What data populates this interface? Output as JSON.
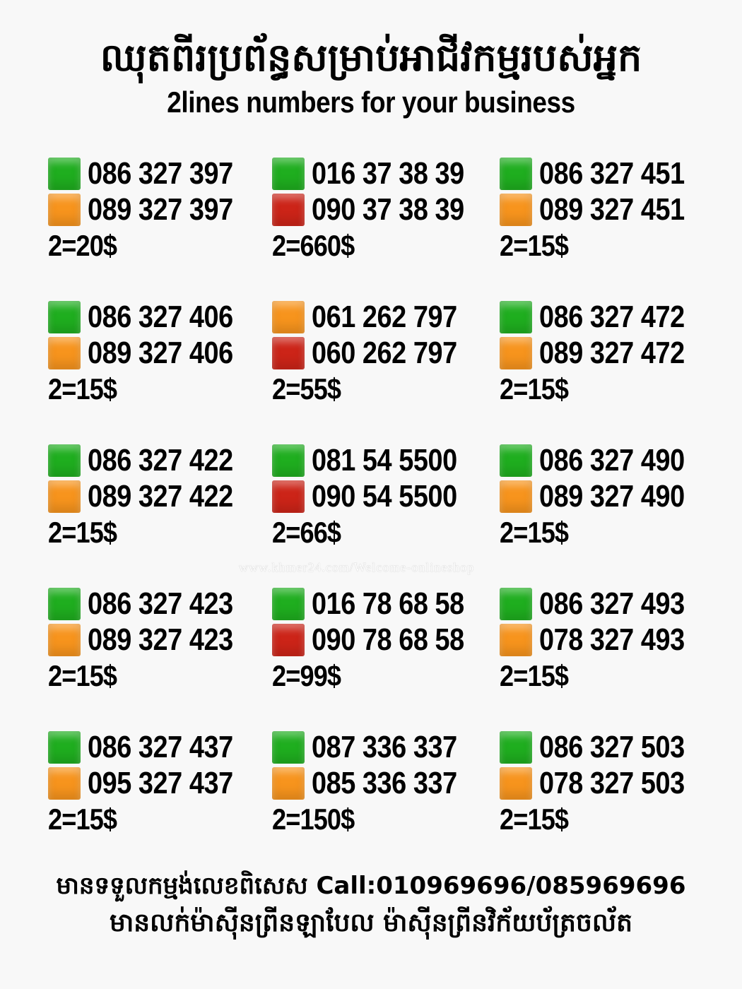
{
  "title_kh": "ឈុតពីរប្រព័ន្ធសម្រាប់អាជីវកម្មរបស់អ្នក",
  "title_en": "2lines numbers for your business",
  "colors": {
    "green": "#1fae1f",
    "orange": "#f7941d",
    "red": "#cc2418"
  },
  "cards": [
    {
      "lines": [
        {
          "color": "green",
          "number": "086 327 397"
        },
        {
          "color": "orange",
          "number": "089 327 397"
        }
      ],
      "price": "2=20$"
    },
    {
      "lines": [
        {
          "color": "green",
          "number": "016 37 38 39"
        },
        {
          "color": "red",
          "number": "090 37 38 39"
        }
      ],
      "price": "2=660$"
    },
    {
      "lines": [
        {
          "color": "green",
          "number": "086 327 451"
        },
        {
          "color": "orange",
          "number": "089 327 451"
        }
      ],
      "price": "2=15$"
    },
    {
      "lines": [
        {
          "color": "green",
          "number": "086 327 406"
        },
        {
          "color": "orange",
          "number": "089 327 406"
        }
      ],
      "price": "2=15$"
    },
    {
      "lines": [
        {
          "color": "orange",
          "number": "061 262 797"
        },
        {
          "color": "red",
          "number": "060 262 797"
        }
      ],
      "price": "2=55$"
    },
    {
      "lines": [
        {
          "color": "green",
          "number": "086 327 472"
        },
        {
          "color": "orange",
          "number": "089 327 472"
        }
      ],
      "price": "2=15$"
    },
    {
      "lines": [
        {
          "color": "green",
          "number": "086 327 422"
        },
        {
          "color": "orange",
          "number": "089 327 422"
        }
      ],
      "price": "2=15$"
    },
    {
      "lines": [
        {
          "color": "green",
          "number": "081 54 5500"
        },
        {
          "color": "red",
          "number": "090 54 5500"
        }
      ],
      "price": "2=66$"
    },
    {
      "lines": [
        {
          "color": "green",
          "number": "086 327 490"
        },
        {
          "color": "orange",
          "number": "089 327 490"
        }
      ],
      "price": "2=15$"
    },
    {
      "lines": [
        {
          "color": "green",
          "number": "086 327 423"
        },
        {
          "color": "orange",
          "number": "089 327 423"
        }
      ],
      "price": "2=15$"
    },
    {
      "lines": [
        {
          "color": "green",
          "number": "016 78 68 58"
        },
        {
          "color": "red",
          "number": "090 78 68 58"
        }
      ],
      "price": "2=99$"
    },
    {
      "lines": [
        {
          "color": "green",
          "number": "086 327 493"
        },
        {
          "color": "orange",
          "number": "078 327 493"
        }
      ],
      "price": "2=15$"
    },
    {
      "lines": [
        {
          "color": "green",
          "number": "086 327 437"
        },
        {
          "color": "orange",
          "number": "095 327 437"
        }
      ],
      "price": "2=15$"
    },
    {
      "lines": [
        {
          "color": "green",
          "number": "087 336 337"
        },
        {
          "color": "orange",
          "number": "085 336 337"
        }
      ],
      "price": "2=150$"
    },
    {
      "lines": [
        {
          "color": "green",
          "number": "086 327 503"
        },
        {
          "color": "orange",
          "number": "078 327 503"
        }
      ],
      "price": "2=15$"
    }
  ],
  "watermark": "www.khmer24.com/Welcome-onlineshop",
  "footer_line1": "មានទទួលកម្មង់លេខពិសេស Call:010969696/085969696",
  "footer_line2": "មានលក់ម៉ាស៊ីនព្រីនឡាបែល ម៉ាស៊ីនព្រីនវិក័យប័ត្រចល័ត"
}
